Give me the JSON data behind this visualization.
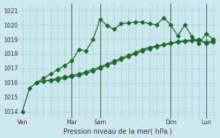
{
  "title": "",
  "xlabel": "Pression niveau de la mer( hPa )",
  "ylabel": "",
  "bg_color": "#cce8ee",
  "grid_color": "#aacccc",
  "line_color": "#1a6b2a",
  "ylim": [
    1013.5,
    1021.5
  ],
  "xlim": [
    -0.5,
    27.5
  ],
  "xtick_positions": [
    0,
    7,
    11,
    15,
    21,
    26
  ],
  "xtick_labels": [
    "Ven",
    "Mar",
    "Sam",
    "",
    "Dim",
    "Lun"
  ],
  "ytick_positions": [
    1014,
    1015,
    1016,
    1017,
    1018,
    1019,
    1020,
    1021
  ],
  "ytick_labels": [
    "1014",
    "1015",
    "1016",
    "1017",
    "1018",
    "1019",
    "1020",
    "1021"
  ],
  "series": [
    {
      "x": [
        0,
        1,
        2,
        3,
        4,
        5,
        6,
        7,
        8,
        9,
        10,
        11,
        12,
        13,
        14,
        15,
        16,
        17,
        18,
        19,
        20,
        21,
        22,
        23,
        24,
        25,
        26,
        27
      ],
      "y": [
        1014.0,
        1015.6,
        1016.0,
        1016.3,
        1016.6,
        1016.9,
        1017.2,
        1017.5,
        1018.3,
        1018.2,
        1019.0,
        1020.4,
        1019.95,
        1019.7,
        1020.1,
        1020.15,
        1020.2,
        1020.2,
        1020.1,
        1020.0,
        1020.5,
        1020.0,
        1019.25,
        1020.0,
        1019.2,
        1018.7,
        1019.4,
        1019.0
      ]
    },
    {
      "x": [
        2,
        3,
        4,
        5,
        6,
        7,
        8,
        9,
        10,
        11,
        12,
        13,
        14,
        15,
        16,
        17,
        18,
        19,
        20,
        21,
        22,
        23,
        24,
        25,
        26,
        27
      ],
      "y": [
        1016.0,
        1016.1,
        1016.2,
        1016.3,
        1016.4,
        1016.5,
        1016.6,
        1016.75,
        1016.9,
        1017.1,
        1017.3,
        1017.5,
        1017.7,
        1017.9,
        1018.1,
        1018.3,
        1018.45,
        1018.55,
        1018.65,
        1018.75,
        1018.85,
        1018.9,
        1018.95,
        1019.0,
        1018.7,
        1018.8
      ]
    },
    {
      "x": [
        2,
        3,
        4,
        5,
        6,
        7,
        8,
        9,
        10,
        11,
        12,
        13,
        14,
        15,
        16,
        17,
        18,
        19,
        20,
        21,
        22,
        23,
        24,
        25,
        26,
        27
      ],
      "y": [
        1016.0,
        1016.1,
        1016.15,
        1016.2,
        1016.3,
        1016.4,
        1016.5,
        1016.65,
        1016.8,
        1017.0,
        1017.2,
        1017.4,
        1017.6,
        1017.8,
        1018.0,
        1018.2,
        1018.35,
        1018.5,
        1018.6,
        1018.7,
        1018.8,
        1018.85,
        1018.9,
        1018.95,
        1018.8,
        1018.9
      ]
    }
  ],
  "vlines_x": [
    7,
    11,
    21,
    26
  ],
  "marker": "D",
  "markersize": 2.8,
  "linewidth": 1.0
}
